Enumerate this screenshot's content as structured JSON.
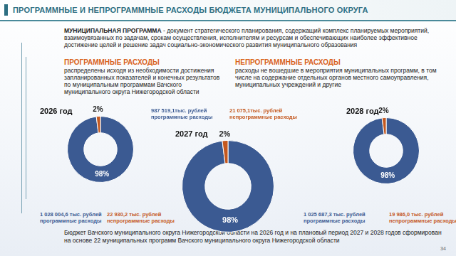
{
  "header": {
    "title": "ПРОГРАММНЫЕ И НЕПРОГРАММНЫЕ РАСХОДЫ БЮДЖЕТА МУНИЦИПАЛЬНОГО ОКРУГА"
  },
  "definition": {
    "term": "МУНИЦИПАЛЬНАЯ ПРОГРАММА",
    "text": "- документ стратегического планирования, содержащий комплекс планируемых мероприятий, взаимоувязанных по задачам, срокам осуществления, исполнителям и ресурсам и обеспечивающих наиболее эффективное достижение целей и решение задач социально-экономического развития муниципального образования"
  },
  "sections": [
    {
      "title": "ПРОГРАММНЫЕ РАСХОДЫ",
      "text": "распределены исходя из необходимости достижения запланированных показателей и конечных результатов по муниципальным программам Вачского муниципального округа Нижегородской области"
    },
    {
      "title": "НЕПРОГРАММНЫЕ РАСХОДЫ",
      "text": "расходы не вошедшие в мероприятия муниципальных программ, в том числе на содержание отдельных органов местного самоуправления, муниципальных учреждений и другие"
    }
  ],
  "chart_data": [
    {
      "type": "doughnut",
      "title": "2026 год",
      "categories": [
        "программные расходы",
        "непрограммные расходы"
      ],
      "values": [
        98,
        2
      ],
      "value_labels": [
        "98%",
        "2%"
      ],
      "amount_labels": [
        "1 028 004,6 тыс. рублей",
        "22 930,2 тыс. рублей"
      ],
      "colors": [
        "#3b5a92",
        "#c4581f"
      ],
      "data_labels": true
    },
    {
      "type": "doughnut",
      "title": "2027 год",
      "categories": [
        "программные расходы",
        "непрограммные расходы"
      ],
      "values": [
        98,
        2
      ],
      "value_labels": [
        "98%",
        "2%"
      ],
      "amount_labels": [
        "987 519,1тыс. рублей",
        "21 075,1тыс. рублей"
      ],
      "colors": [
        "#3b5a92",
        "#c4581f"
      ],
      "data_labels": true
    },
    {
      "type": "doughnut",
      "title": "2028 год",
      "categories": [
        "программные расходы",
        "непрограммные расходы"
      ],
      "values": [
        98,
        2
      ],
      "value_labels": [
        "98%",
        "2%"
      ],
      "amount_labels": [
        "1 025 687,3 тыс. рублей",
        "19 986,0 тыс. рублей"
      ],
      "colors": [
        "#3b5a92",
        "#c4581f"
      ],
      "data_labels": true
    }
  ],
  "footer": "Бюджет Вачского муниципального округа Нижегородской области на 2026 год и на плановый период 2027 и 2028 годов сформирован на основе 22 муниципальных программ Вачского муниципального округа Нижегородской области",
  "page_number": "34"
}
